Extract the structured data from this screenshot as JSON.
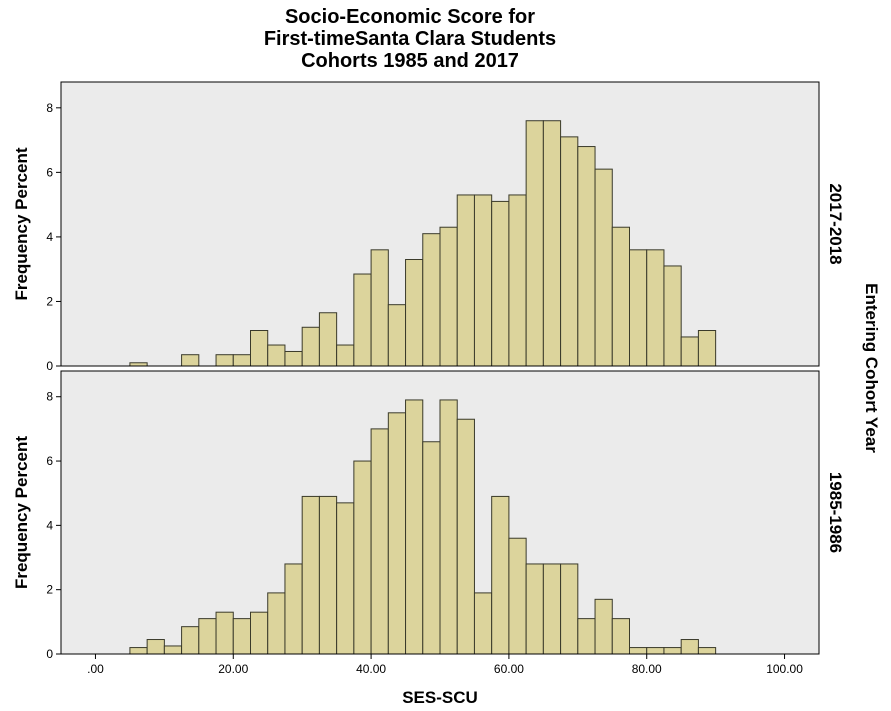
{
  "chart_data": {
    "type": "bar",
    "subtype": "histogram-panels",
    "title": [
      "Socio-Economic Score for",
      "First-timeSanta Clara Students",
      "Cohorts 1985 and 2017"
    ],
    "xlabel": "SES-SCU",
    "ylabel": "Frequency Percent",
    "facet_label": "Entering Cohort Year",
    "xlim": [
      -5,
      105
    ],
    "ylim": [
      0,
      8.8
    ],
    "x_ticks": [
      {
        "value": 0,
        "label": ".00"
      },
      {
        "value": 20,
        "label": "20.00"
      },
      {
        "value": 40,
        "label": "40.00"
      },
      {
        "value": 60,
        "label": "60.00"
      },
      {
        "value": 80,
        "label": "80.00"
      },
      {
        "value": 100,
        "label": "100.00"
      }
    ],
    "y_ticks": [
      0,
      2,
      4,
      6,
      8
    ],
    "bin_width": 2.5,
    "bar_color": "#dcd49c",
    "bar_edge_color": "#3a3a2a",
    "panel_bg": "#ebebeb",
    "panels": [
      {
        "name": "2017-2018",
        "bins": [
          {
            "x0": 5,
            "v": 0.1
          },
          {
            "x0": 12.5,
            "v": 0.35
          },
          {
            "x0": 17.5,
            "v": 0.35
          },
          {
            "x0": 20,
            "v": 0.35
          },
          {
            "x0": 22.5,
            "v": 1.1
          },
          {
            "x0": 25,
            "v": 0.65
          },
          {
            "x0": 27.5,
            "v": 0.45
          },
          {
            "x0": 30,
            "v": 1.2
          },
          {
            "x0": 32.5,
            "v": 1.65
          },
          {
            "x0": 35,
            "v": 0.65
          },
          {
            "x0": 37.5,
            "v": 2.85
          },
          {
            "x0": 40,
            "v": 3.6
          },
          {
            "x0": 42.5,
            "v": 1.9
          },
          {
            "x0": 45,
            "v": 3.3
          },
          {
            "x0": 47.5,
            "v": 4.1
          },
          {
            "x0": 50,
            "v": 4.3
          },
          {
            "x0": 52.5,
            "v": 5.3
          },
          {
            "x0": 55,
            "v": 5.3
          },
          {
            "x0": 57.5,
            "v": 5.1
          },
          {
            "x0": 60,
            "v": 5.3
          },
          {
            "x0": 62.5,
            "v": 7.6
          },
          {
            "x0": 65,
            "v": 7.6
          },
          {
            "x0": 67.5,
            "v": 7.1
          },
          {
            "x0": 70,
            "v": 6.8
          },
          {
            "x0": 72.5,
            "v": 6.1
          },
          {
            "x0": 75,
            "v": 4.3
          },
          {
            "x0": 77.5,
            "v": 3.6
          },
          {
            "x0": 80,
            "v": 3.6
          },
          {
            "x0": 82.5,
            "v": 3.1
          },
          {
            "x0": 85,
            "v": 0.9
          },
          {
            "x0": 87.5,
            "v": 1.1
          }
        ]
      },
      {
        "name": "1985-1986",
        "bins": [
          {
            "x0": 5,
            "v": 0.2
          },
          {
            "x0": 7.5,
            "v": 0.45
          },
          {
            "x0": 10,
            "v": 0.25
          },
          {
            "x0": 12.5,
            "v": 0.85
          },
          {
            "x0": 15,
            "v": 1.1
          },
          {
            "x0": 17.5,
            "v": 1.3
          },
          {
            "x0": 20,
            "v": 1.1
          },
          {
            "x0": 22.5,
            "v": 1.3
          },
          {
            "x0": 25,
            "v": 1.9
          },
          {
            "x0": 27.5,
            "v": 2.8
          },
          {
            "x0": 30,
            "v": 4.9
          },
          {
            "x0": 32.5,
            "v": 4.9
          },
          {
            "x0": 35,
            "v": 4.7
          },
          {
            "x0": 37.5,
            "v": 6.0
          },
          {
            "x0": 40,
            "v": 7.0
          },
          {
            "x0": 42.5,
            "v": 7.5
          },
          {
            "x0": 45,
            "v": 7.9
          },
          {
            "x0": 47.5,
            "v": 6.6
          },
          {
            "x0": 50,
            "v": 7.9
          },
          {
            "x0": 52.5,
            "v": 7.3
          },
          {
            "x0": 55,
            "v": 1.9
          },
          {
            "x0": 57.5,
            "v": 4.9
          },
          {
            "x0": 60,
            "v": 3.6
          },
          {
            "x0": 62.5,
            "v": 2.8
          },
          {
            "x0": 65,
            "v": 2.8
          },
          {
            "x0": 67.5,
            "v": 2.8
          },
          {
            "x0": 70,
            "v": 1.1
          },
          {
            "x0": 72.5,
            "v": 1.7
          },
          {
            "x0": 75,
            "v": 1.1
          },
          {
            "x0": 77.5,
            "v": 0.2
          },
          {
            "x0": 80,
            "v": 0.2
          },
          {
            "x0": 82.5,
            "v": 0.2
          },
          {
            "x0": 85,
            "v": 0.45
          },
          {
            "x0": 87.5,
            "v": 0.2
          }
        ]
      }
    ]
  }
}
